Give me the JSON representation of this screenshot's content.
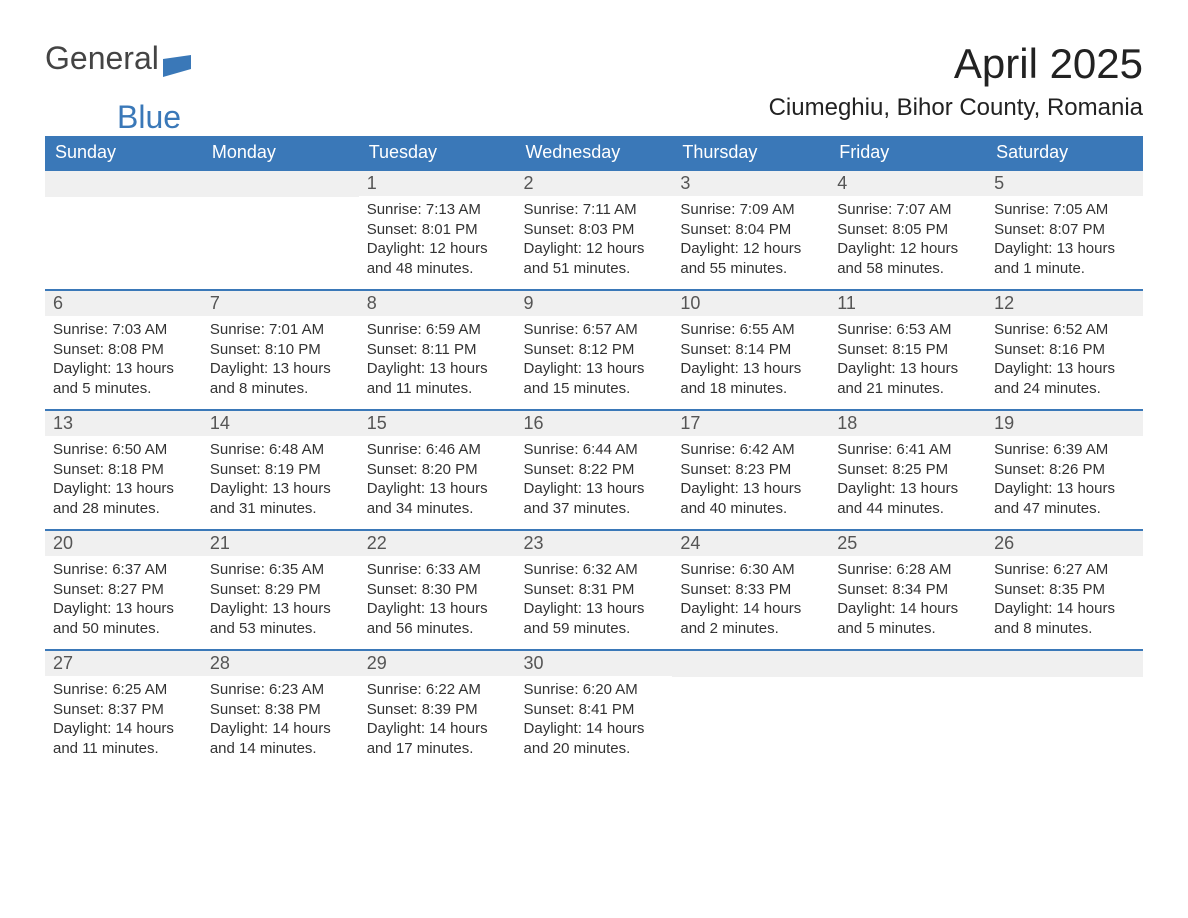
{
  "brand": {
    "text1": "General",
    "text2": "Blue",
    "color_general": "#444444",
    "color_blue": "#3a78b8"
  },
  "title": "April 2025",
  "location": "Ciumeghiu, Bihor County, Romania",
  "header_bg": "#3a78b8",
  "header_fg": "#ffffff",
  "daynum_bg": "#f0f0f0",
  "cell_border": "#3a78b8",
  "weekdays": [
    "Sunday",
    "Monday",
    "Tuesday",
    "Wednesday",
    "Thursday",
    "Friday",
    "Saturday"
  ],
  "weeks": [
    [
      null,
      null,
      {
        "n": "1",
        "sunrise": "7:13 AM",
        "sunset": "8:01 PM",
        "daylight": "12 hours and 48 minutes."
      },
      {
        "n": "2",
        "sunrise": "7:11 AM",
        "sunset": "8:03 PM",
        "daylight": "12 hours and 51 minutes."
      },
      {
        "n": "3",
        "sunrise": "7:09 AM",
        "sunset": "8:04 PM",
        "daylight": "12 hours and 55 minutes."
      },
      {
        "n": "4",
        "sunrise": "7:07 AM",
        "sunset": "8:05 PM",
        "daylight": "12 hours and 58 minutes."
      },
      {
        "n": "5",
        "sunrise": "7:05 AM",
        "sunset": "8:07 PM",
        "daylight": "13 hours and 1 minute."
      }
    ],
    [
      {
        "n": "6",
        "sunrise": "7:03 AM",
        "sunset": "8:08 PM",
        "daylight": "13 hours and 5 minutes."
      },
      {
        "n": "7",
        "sunrise": "7:01 AM",
        "sunset": "8:10 PM",
        "daylight": "13 hours and 8 minutes."
      },
      {
        "n": "8",
        "sunrise": "6:59 AM",
        "sunset": "8:11 PM",
        "daylight": "13 hours and 11 minutes."
      },
      {
        "n": "9",
        "sunrise": "6:57 AM",
        "sunset": "8:12 PM",
        "daylight": "13 hours and 15 minutes."
      },
      {
        "n": "10",
        "sunrise": "6:55 AM",
        "sunset": "8:14 PM",
        "daylight": "13 hours and 18 minutes."
      },
      {
        "n": "11",
        "sunrise": "6:53 AM",
        "sunset": "8:15 PM",
        "daylight": "13 hours and 21 minutes."
      },
      {
        "n": "12",
        "sunrise": "6:52 AM",
        "sunset": "8:16 PM",
        "daylight": "13 hours and 24 minutes."
      }
    ],
    [
      {
        "n": "13",
        "sunrise": "6:50 AM",
        "sunset": "8:18 PM",
        "daylight": "13 hours and 28 minutes."
      },
      {
        "n": "14",
        "sunrise": "6:48 AM",
        "sunset": "8:19 PM",
        "daylight": "13 hours and 31 minutes."
      },
      {
        "n": "15",
        "sunrise": "6:46 AM",
        "sunset": "8:20 PM",
        "daylight": "13 hours and 34 minutes."
      },
      {
        "n": "16",
        "sunrise": "6:44 AM",
        "sunset": "8:22 PM",
        "daylight": "13 hours and 37 minutes."
      },
      {
        "n": "17",
        "sunrise": "6:42 AM",
        "sunset": "8:23 PM",
        "daylight": "13 hours and 40 minutes."
      },
      {
        "n": "18",
        "sunrise": "6:41 AM",
        "sunset": "8:25 PM",
        "daylight": "13 hours and 44 minutes."
      },
      {
        "n": "19",
        "sunrise": "6:39 AM",
        "sunset": "8:26 PM",
        "daylight": "13 hours and 47 minutes."
      }
    ],
    [
      {
        "n": "20",
        "sunrise": "6:37 AM",
        "sunset": "8:27 PM",
        "daylight": "13 hours and 50 minutes."
      },
      {
        "n": "21",
        "sunrise": "6:35 AM",
        "sunset": "8:29 PM",
        "daylight": "13 hours and 53 minutes."
      },
      {
        "n": "22",
        "sunrise": "6:33 AM",
        "sunset": "8:30 PM",
        "daylight": "13 hours and 56 minutes."
      },
      {
        "n": "23",
        "sunrise": "6:32 AM",
        "sunset": "8:31 PM",
        "daylight": "13 hours and 59 minutes."
      },
      {
        "n": "24",
        "sunrise": "6:30 AM",
        "sunset": "8:33 PM",
        "daylight": "14 hours and 2 minutes."
      },
      {
        "n": "25",
        "sunrise": "6:28 AM",
        "sunset": "8:34 PM",
        "daylight": "14 hours and 5 minutes."
      },
      {
        "n": "26",
        "sunrise": "6:27 AM",
        "sunset": "8:35 PM",
        "daylight": "14 hours and 8 minutes."
      }
    ],
    [
      {
        "n": "27",
        "sunrise": "6:25 AM",
        "sunset": "8:37 PM",
        "daylight": "14 hours and 11 minutes."
      },
      {
        "n": "28",
        "sunrise": "6:23 AM",
        "sunset": "8:38 PM",
        "daylight": "14 hours and 14 minutes."
      },
      {
        "n": "29",
        "sunrise": "6:22 AM",
        "sunset": "8:39 PM",
        "daylight": "14 hours and 17 minutes."
      },
      {
        "n": "30",
        "sunrise": "6:20 AM",
        "sunset": "8:41 PM",
        "daylight": "14 hours and 20 minutes."
      },
      null,
      null,
      null
    ]
  ],
  "labels": {
    "sunrise": "Sunrise:",
    "sunset": "Sunset:",
    "daylight": "Daylight:"
  }
}
